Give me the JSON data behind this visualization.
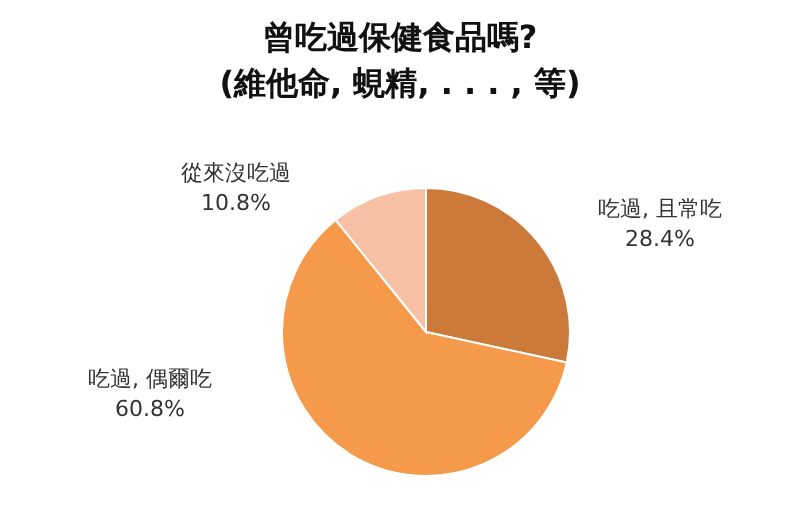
{
  "chart_data": {
    "type": "pie",
    "title": "曾吃過保健食品嗎?\n(維他命, 蜆精, . . . , 等)",
    "categories": [
      "吃過, 且常吃",
      "吃過, 偶爾吃",
      "從來沒吃過"
    ],
    "values": [
      28.4,
      60.8,
      10.8
    ],
    "colors": [
      "#cc7a3a",
      "#f59a4a",
      "#f8c0a4"
    ],
    "value_labels": [
      "28.4%",
      "60.8%",
      "10.8%"
    ]
  }
}
